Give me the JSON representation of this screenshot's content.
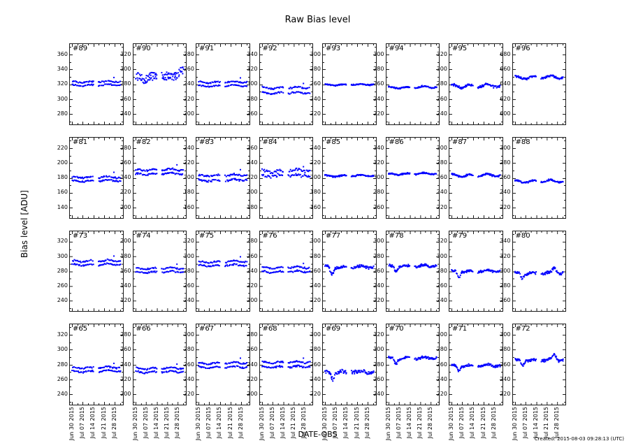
{
  "header": {
    "title": "Raw Bias level"
  },
  "axes": {
    "ylabel": "Bias level [ADU]",
    "xlabel": "DATE-OBS"
  },
  "footer": {
    "created": "Created: 2015-08-03 09:28:13 (UTC)"
  },
  "colors": {
    "marker": "#0000ff",
    "spine": "#1a1a1a",
    "text": "#000000"
  },
  "chart_data": {
    "type": "scatter",
    "title": "Raw Bias level",
    "xlabel": "DATE-OBS",
    "ylabel": "Bias level [ADU]",
    "legend": "none",
    "grid_lines": "off",
    "layout": {
      "rows": 4,
      "cols": 8
    },
    "x_epoch": "Jun 30 2015",
    "date_range": "Jun 30 2015 - Aug 01 2015",
    "x_tick_labels": [
      "Jun 30 2015",
      "Jul 07 2015",
      "Jul 14 2015",
      "Jul 21 2015",
      "Jul 28 2015"
    ],
    "x_ticks_days": [
      0,
      7,
      14,
      21,
      28
    ],
    "x_minor_ticks_days": [
      3.5,
      10.5,
      17.5,
      24.5,
      31.5
    ],
    "xlim_days": [
      -1.5,
      33.5
    ],
    "clusters": [
      [
        0,
        14
      ],
      [
        17.4,
        32
      ]
    ],
    "marker": "square-2px",
    "panels": [
      {
        "label": "#89",
        "yticks": [
          280,
          300,
          320,
          340,
          360
        ],
        "ylim": [
          266,
          374
        ],
        "level": 320.5,
        "bands": [
          318.5,
          323
        ],
        "jitter": 0.8,
        "wiggle": 0.9,
        "spike": {
          "day": 27.5,
          "delta": 6
        }
      },
      {
        "label": "#90",
        "yticks": [
          240,
          260,
          280,
          300,
          320
        ],
        "ylim": [
          226,
          334
        ],
        "level": 290,
        "bands": [
          287,
          293
        ],
        "jitter": 2.4,
        "wiggle": 1.2,
        "dip": {
          "start": 4,
          "end": 7.5,
          "depth": -6
        },
        "bump": {
          "day": 30.5,
          "width": 2,
          "delta": 9
        }
      },
      {
        "label": "#91",
        "yticks": [
          200,
          220,
          240,
          260,
          280
        ],
        "ylim": [
          186,
          294
        ],
        "level": 240,
        "bands": [
          237.5,
          242.5
        ],
        "jitter": 0.8,
        "wiggle": 0.9,
        "spike": {
          "day": 27.5,
          "delta": 6
        }
      },
      {
        "label": "#92",
        "yticks": [
          260,
          280,
          300,
          320,
          340
        ],
        "ylim": [
          246,
          354
        ],
        "level": 291.5,
        "bands": [
          288,
          295
        ],
        "jitter": 1.1,
        "wiggle": 1.0,
        "spike": {
          "day": 27.5,
          "delta": 6
        }
      },
      {
        "label": "#93",
        "yticks": [
          220,
          240,
          260,
          280,
          300
        ],
        "ylim": [
          206,
          314
        ],
        "level": 259,
        "bands": [
          259
        ],
        "jitter": 0.7,
        "wiggle": 0.7
      },
      {
        "label": "#94",
        "yticks": [
          220,
          240,
          260,
          280,
          300
        ],
        "ylim": [
          206,
          314
        ],
        "level": 255.5,
        "bands": [
          255.5
        ],
        "jitter": 0.9,
        "wiggle": 1.1
      },
      {
        "label": "#95",
        "yticks": [
          240,
          260,
          280,
          300,
          320
        ],
        "ylim": [
          226,
          334
        ],
        "level": 277.5,
        "bands": [
          277.5
        ],
        "jitter": 1.5,
        "wiggle": 2.0
      },
      {
        "label": "#96",
        "yticks": [
          600,
          620,
          640,
          660,
          680
        ],
        "ylim": [
          586,
          694
        ],
        "level": 649,
        "bands": [
          649
        ],
        "jitter": 1.4,
        "wiggle": 1.8
      },
      {
        "label": "#81",
        "yticks": [
          140,
          160,
          180,
          200,
          220
        ],
        "ylim": [
          126,
          234
        ],
        "level": 178,
        "bands": [
          175.5,
          180.5
        ],
        "jitter": 1.0,
        "wiggle": 1.0,
        "spike": {
          "day": 27.5,
          "delta": 7
        }
      },
      {
        "label": "#82",
        "yticks": [
          200,
          220,
          240,
          260,
          280
        ],
        "ylim": [
          186,
          294
        ],
        "level": 248,
        "bands": [
          245,
          250.5
        ],
        "jitter": 1.0,
        "wiggle": 1.0,
        "spike": {
          "day": 27.5,
          "delta": 7
        }
      },
      {
        "label": "#83",
        "yticks": [
          160,
          180,
          200,
          220,
          240
        ],
        "ylim": [
          146,
          254
        ],
        "level": 200,
        "bands": [
          196.5,
          203
        ],
        "jitter": 1.2,
        "wiggle": 1.1,
        "spike": {
          "day": 27.5,
          "delta": 8
        }
      },
      {
        "label": "#84",
        "yticks": [
          180,
          200,
          220,
          240,
          260
        ],
        "ylim": [
          166,
          274
        ],
        "level": 226,
        "bands": [
          222.5,
          229
        ],
        "jitter": 2.2,
        "wiggle": 1.2,
        "spike": {
          "day": 27.5,
          "delta": 6
        }
      },
      {
        "label": "#85",
        "yticks": [
          160,
          180,
          200,
          220,
          240
        ],
        "ylim": [
          146,
          254
        ],
        "level": 202.5,
        "bands": [
          202.5
        ],
        "jitter": 0.8,
        "wiggle": 1.0
      },
      {
        "label": "#86",
        "yticks": [
          260,
          280,
          300,
          320,
          340
        ],
        "ylim": [
          246,
          354
        ],
        "level": 305,
        "bands": [
          305
        ],
        "jitter": 0.9,
        "wiggle": 1.0
      },
      {
        "label": "#87",
        "yticks": [
          220,
          240,
          260,
          280,
          300
        ],
        "ylim": [
          206,
          314
        ],
        "level": 263,
        "bands": [
          263
        ],
        "jitter": 1.1,
        "wiggle": 1.7
      },
      {
        "label": "#88",
        "yticks": [
          220,
          240,
          260,
          280,
          300
        ],
        "ylim": [
          206,
          314
        ],
        "level": 255,
        "bands": [
          255
        ],
        "jitter": 1.0,
        "wiggle": 1.6
      },
      {
        "label": "#73",
        "yticks": [
          240,
          260,
          280,
          300,
          320
        ],
        "ylim": [
          226,
          334
        ],
        "level": 291,
        "bands": [
          288.5,
          293.5
        ],
        "jitter": 0.9,
        "wiggle": 1.0,
        "spike": {
          "day": 27.5,
          "delta": 7
        }
      },
      {
        "label": "#74",
        "yticks": [
          120,
          140,
          160,
          180,
          200
        ],
        "ylim": [
          106,
          214
        ],
        "level": 161,
        "bands": [
          158.5,
          163.5
        ],
        "jitter": 0.9,
        "wiggle": 1.0,
        "spike": {
          "day": 27.5,
          "delta": 6
        }
      },
      {
        "label": "#75",
        "yticks": [
          240,
          260,
          280,
          300,
          320
        ],
        "ylim": [
          226,
          334
        ],
        "level": 290,
        "bands": [
          287.5,
          292.5
        ],
        "jitter": 0.9,
        "wiggle": 1.0,
        "spike": {
          "day": 27.5,
          "delta": 7
        }
      },
      {
        "label": "#76",
        "yticks": [
          200,
          220,
          240,
          260,
          280
        ],
        "ylim": [
          186,
          294
        ],
        "level": 242,
        "bands": [
          239,
          244.5
        ],
        "jitter": 1.0,
        "wiggle": 1.0,
        "spike": {
          "day": 27.5,
          "delta": 6
        }
      },
      {
        "label": "#77",
        "yticks": [
          220,
          240,
          260,
          280,
          300
        ],
        "ylim": [
          206,
          314
        ],
        "level": 265,
        "bands": [
          265.5
        ],
        "jitter": 1.8,
        "wiggle": 1.2,
        "dip": {
          "start": 2.5,
          "end": 6.5,
          "depth": -9
        }
      },
      {
        "label": "#78",
        "yticks": [
          220,
          240,
          260,
          280,
          300
        ],
        "ylim": [
          206,
          314
        ],
        "level": 266,
        "bands": [
          266.5
        ],
        "jitter": 1.6,
        "wiggle": 1.2,
        "dip": {
          "start": 3,
          "end": 6.5,
          "depth": -6
        }
      },
      {
        "label": "#79",
        "yticks": [
          240,
          260,
          280,
          300,
          320
        ],
        "ylim": [
          226,
          334
        ],
        "level": 279.5,
        "bands": [
          279.5
        ],
        "jitter": 1.4,
        "wiggle": 1.1,
        "dip": {
          "start": 3,
          "end": 6.5,
          "depth": -7
        }
      },
      {
        "label": "#80",
        "yticks": [
          260,
          280,
          300,
          320,
          340
        ],
        "ylim": [
          246,
          354
        ],
        "level": 297,
        "bands": [
          297
        ],
        "jitter": 1.6,
        "wiggle": 1.2,
        "dip": {
          "start": 3,
          "end": 6.5,
          "depth": -6
        },
        "bump": {
          "day": 26,
          "width": 1.5,
          "delta": 7
        }
      },
      {
        "label": "#65",
        "yticks": [
          240,
          260,
          280,
          300,
          320
        ],
        "ylim": [
          226,
          334
        ],
        "level": 273,
        "bands": [
          270.5,
          275.5
        ],
        "jitter": 0.9,
        "wiggle": 1.0,
        "spike": {
          "day": 27.5,
          "delta": 6
        }
      },
      {
        "label": "#66",
        "yticks": [
          200,
          220,
          240,
          260,
          280
        ],
        "ylim": [
          186,
          294
        ],
        "level": 232,
        "bands": [
          229.5,
          234.5
        ],
        "jitter": 0.9,
        "wiggle": 1.0,
        "spike": {
          "day": 27.5,
          "delta": 6
        }
      },
      {
        "label": "#67",
        "yticks": [
          220,
          240,
          260,
          280,
          300
        ],
        "ylim": [
          206,
          314
        ],
        "level": 259,
        "bands": [
          256,
          261.5
        ],
        "jitter": 0.9,
        "wiggle": 1.0,
        "spike": {
          "day": 27.5,
          "delta": 7
        }
      },
      {
        "label": "#68",
        "yticks": [
          200,
          220,
          240,
          260,
          280
        ],
        "ylim": [
          186,
          294
        ],
        "level": 240,
        "bands": [
          236.5,
          242.5
        ],
        "jitter": 1.1,
        "wiggle": 1.1,
        "spike": {
          "day": 27.5,
          "delta": 6
        }
      },
      {
        "label": "#69",
        "yticks": [
          220,
          240,
          260,
          280,
          300
        ],
        "ylim": [
          206,
          314
        ],
        "level": 250,
        "bands": [
          249.5
        ],
        "jitter": 3.0,
        "wiggle": 1.4,
        "dip": {
          "start": 3,
          "end": 6.5,
          "depth": -8
        }
      },
      {
        "label": "#70",
        "yticks": [
          240,
          260,
          280,
          300,
          320
        ],
        "ylim": [
          226,
          334
        ],
        "level": 288,
        "bands": [
          288
        ],
        "jitter": 1.6,
        "wiggle": 1.2,
        "dip": {
          "start": 3,
          "end": 6.5,
          "depth": -6
        }
      },
      {
        "label": "#71",
        "yticks": [
          220,
          240,
          260,
          280,
          300
        ],
        "ylim": [
          206,
          314
        ],
        "level": 258,
        "bands": [
          258
        ],
        "jitter": 1.5,
        "wiggle": 1.2,
        "dip": {
          "start": 3,
          "end": 6.5,
          "depth": -6
        }
      },
      {
        "label": "#72",
        "yticks": [
          220,
          240,
          260,
          280,
          300
        ],
        "ylim": [
          206,
          314
        ],
        "level": 265.5,
        "bands": [
          265.5
        ],
        "jitter": 1.8,
        "wiggle": 1.3,
        "dip": {
          "start": 3,
          "end": 6.5,
          "depth": -6
        },
        "bump": {
          "day": 26,
          "width": 1.5,
          "delta": 8
        }
      }
    ]
  }
}
